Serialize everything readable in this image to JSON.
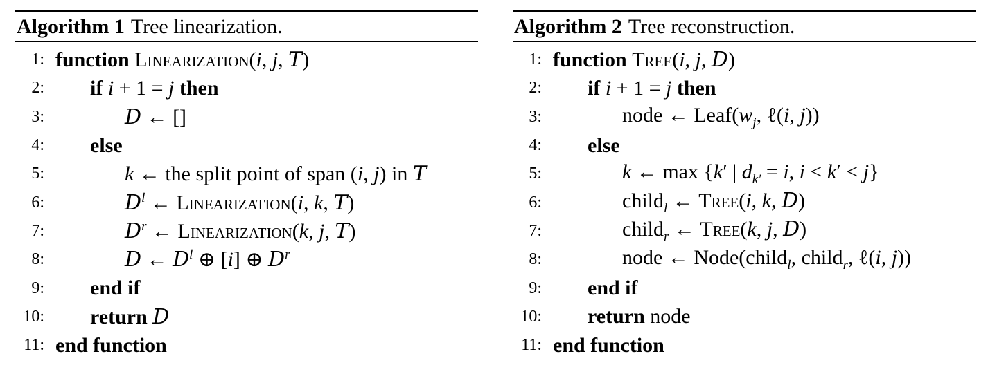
{
  "algorithms": [
    {
      "title": "Algorithm 1",
      "caption": "Tree linearization.",
      "lines": [
        {
          "num": "1:",
          "indent": 0
        },
        {
          "num": "2:",
          "indent": 1
        },
        {
          "num": "3:",
          "indent": 2
        },
        {
          "num": "4:",
          "indent": 1
        },
        {
          "num": "5:",
          "indent": 2
        },
        {
          "num": "6:",
          "indent": 2
        },
        {
          "num": "7:",
          "indent": 2
        },
        {
          "num": "8:",
          "indent": 2
        },
        {
          "num": "9:",
          "indent": 1
        },
        {
          "num": "10:",
          "indent": 1
        },
        {
          "num": "11:",
          "indent": 0
        }
      ]
    },
    {
      "title": "Algorithm 2",
      "caption": "Tree reconstruction.",
      "lines": [
        {
          "num": "1:",
          "indent": 0
        },
        {
          "num": "2:",
          "indent": 1
        },
        {
          "num": "3:",
          "indent": 2
        },
        {
          "num": "4:",
          "indent": 1
        },
        {
          "num": "5:",
          "indent": 2
        },
        {
          "num": "6:",
          "indent": 2
        },
        {
          "num": "7:",
          "indent": 2
        },
        {
          "num": "8:",
          "indent": 2
        },
        {
          "num": "9:",
          "indent": 1
        },
        {
          "num": "10:",
          "indent": 1
        },
        {
          "num": "11:",
          "indent": 0
        }
      ]
    }
  ],
  "code": {
    "a1": [
      [
        "b:function ",
        "sc:Linearization",
        "t:(",
        "m:i",
        "t:, ",
        "m:j",
        "t:, ",
        "cal:T",
        "t:)"
      ],
      [
        "b:if ",
        "m:i",
        "t: + 1 = ",
        "m:j",
        "b: then"
      ],
      [
        "cal:D",
        "t: ← []"
      ],
      [
        "b:else"
      ],
      [
        "m:k",
        "t: ← the split point of span (",
        "m:i",
        "t:, ",
        "m:j",
        "t:) in ",
        "cal:T"
      ],
      [
        "cal:D",
        "sup:l",
        "t: ← ",
        "sc:Linearization",
        "t:(",
        "m:i",
        "t:, ",
        "m:k",
        "t:, ",
        "cal:T",
        "t:)"
      ],
      [
        "cal:D",
        "sup:r",
        "t: ← ",
        "sc:Linearization",
        "t:(",
        "m:k",
        "t:, ",
        "m:j",
        "t:, ",
        "cal:T",
        "t:)"
      ],
      [
        "cal:D",
        "t: ← ",
        "cal:D",
        "sup:l",
        "t: ⊕ [",
        "m:i",
        "t:] ⊕ ",
        "cal:D",
        "sup:r"
      ],
      [
        "b:end if"
      ],
      [
        "b:return ",
        "cal:D"
      ],
      [
        "b:end function"
      ]
    ],
    "a2": [
      [
        "b:function ",
        "sc:Tree",
        "t:(",
        "m:i",
        "t:, ",
        "m:j",
        "t:, ",
        "cal:D",
        "t:)"
      ],
      [
        "b:if ",
        "m:i",
        "t: + 1 = ",
        "m:j",
        "b: then"
      ],
      [
        "t:node ← Leaf(",
        "m:w",
        "subm:j",
        "t:, ℓ(",
        "m:i",
        "t:, ",
        "m:j",
        "t:))"
      ],
      [
        "b:else"
      ],
      [
        "m:k",
        "t: ← max {",
        "m:k",
        "t:′ | ",
        "m:d",
        "subm:k′",
        "t: = ",
        "m:i",
        "t:, ",
        "m:i",
        "t: < ",
        "m:k",
        "t:′ < ",
        "m:j",
        "t:}"
      ],
      [
        "t:child",
        "subm:l",
        "t: ← ",
        "sc:Tree",
        "t:(",
        "m:i",
        "t:, ",
        "m:k",
        "t:, ",
        "cal:D",
        "t:)"
      ],
      [
        "t:child",
        "subm:r",
        "t: ← ",
        "sc:Tree",
        "t:(",
        "m:k",
        "t:, ",
        "m:j",
        "t:, ",
        "cal:D",
        "t:)"
      ],
      [
        "t:node ← Node(child",
        "subm:l",
        "t:, child",
        "subm:r",
        "t:, ℓ(",
        "m:i",
        "t:, ",
        "m:j",
        "t:))"
      ],
      [
        "b:end if"
      ],
      [
        "b:return ",
        "t:node"
      ],
      [
        "b:end function"
      ]
    ]
  }
}
